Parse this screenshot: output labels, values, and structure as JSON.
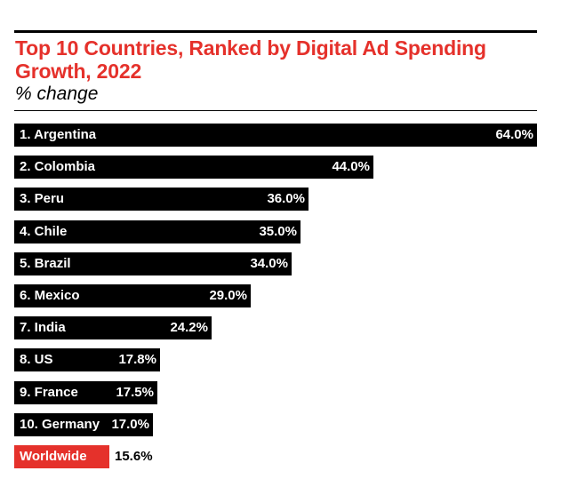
{
  "chart_data": {
    "type": "bar",
    "orientation": "horizontal",
    "title": "Top 10 Countries, Ranked by Digital Ad Spending Growth, 2022",
    "subtitle": "% change",
    "categories": [
      "1. Argentina",
      "2. Colombia",
      "3. Peru",
      "4. Chile",
      "5. Brazil",
      "6. Mexico",
      "7. India",
      "8. US",
      "9. France",
      "10. Germany",
      "Worldwide"
    ],
    "values": [
      64.0,
      44.0,
      36.0,
      35.0,
      34.0,
      29.0,
      24.2,
      17.8,
      17.5,
      17.0,
      15.6
    ],
    "value_labels": [
      "64.0%",
      "44.0%",
      "36.0%",
      "35.0%",
      "34.0%",
      "29.0%",
      "24.2%",
      "17.8%",
      "17.5%",
      "17.0%",
      "15.6%"
    ],
    "highlight_category": "Worldwide",
    "xlim": [
      0,
      64
    ],
    "xlabel": "",
    "ylabel": "",
    "colors": {
      "bar": "#000000",
      "highlight": "#e5312b",
      "label_on_bar": "#ffffff",
      "label_outside": "#000000",
      "title": "#e5312b"
    }
  }
}
